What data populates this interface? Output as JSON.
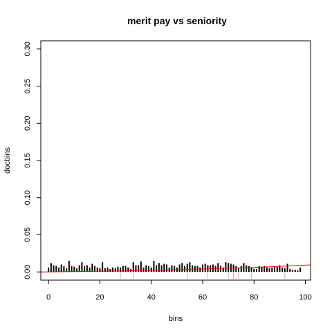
{
  "chart_data": {
    "type": "bar",
    "title": "merit pay vs seniority",
    "xlabel": "bins",
    "ylabel": "docbins",
    "xlim": [
      -3,
      102
    ],
    "ylim": [
      -0.011,
      0.311
    ],
    "x_ticks": [
      0,
      20,
      40,
      60,
      80,
      100
    ],
    "x_tick_labels": [
      "0",
      "20",
      "40",
      "60",
      "80",
      "100"
    ],
    "y_ticks": [
      0.0,
      0.05,
      0.1,
      0.15,
      0.2,
      0.25,
      0.3
    ],
    "y_tick_labels": [
      "0.00",
      "0.05",
      "0.10",
      "0.15",
      "0.20",
      "0.25",
      "0.30"
    ],
    "grid": false,
    "series": [
      {
        "style": "histogram-spikes",
        "color": "#000000",
        "x": [
          0,
          1,
          2,
          3,
          4,
          5,
          6,
          7,
          8,
          9,
          10,
          11,
          12,
          13,
          14,
          15,
          16,
          17,
          18,
          19,
          20,
          21,
          22,
          23,
          24,
          25,
          26,
          27,
          28,
          29,
          30,
          31,
          32,
          33,
          34,
          35,
          36,
          37,
          38,
          39,
          40,
          41,
          42,
          43,
          44,
          45,
          46,
          47,
          48,
          49,
          50,
          51,
          52,
          53,
          54,
          55,
          56,
          57,
          58,
          59,
          60,
          61,
          62,
          63,
          64,
          65,
          66,
          67,
          68,
          69,
          70,
          71,
          72,
          73,
          74,
          75,
          76,
          77,
          78,
          79,
          80,
          81,
          82,
          83,
          84,
          85,
          86,
          87,
          88,
          89,
          90,
          91,
          92,
          93,
          94,
          95,
          96,
          97,
          98
        ],
        "values": [
          0.006,
          0.012,
          0.009,
          0.008,
          0.006,
          0.01,
          0.008,
          0.005,
          0.015,
          0.008,
          0.007,
          0.005,
          0.009,
          0.013,
          0.008,
          0.009,
          0.006,
          0.011,
          0.008,
          0.006,
          0.005,
          0.013,
          0.005,
          0.006,
          0.004,
          0.006,
          0.005,
          0.007,
          0.006,
          0.008,
          0.008,
          0.006,
          0.004,
          0.013,
          0.009,
          0.009,
          0.014,
          0.006,
          0.009,
          0.008,
          0.006,
          0.015,
          0.009,
          0.012,
          0.009,
          0.011,
          0.01,
          0.006,
          0.009,
          0.008,
          0.006,
          0.01,
          0.012,
          0.008,
          0.011,
          0.013,
          0.009,
          0.008,
          0.008,
          0.006,
          0.01,
          0.011,
          0.009,
          0.009,
          0.01,
          0.008,
          0.012,
          0.008,
          0.006,
          0.013,
          0.012,
          0.011,
          0.01,
          0.008,
          0.006,
          0.008,
          0.012,
          0.009,
          0.008,
          0.006,
          0.004,
          0.004,
          0.008,
          0.007,
          0.008,
          0.006,
          0.005,
          0.006,
          0.007,
          0.007,
          0.009,
          0.006,
          0.005,
          0.011,
          0.004,
          0.003,
          0.003,
          0.002,
          0.006
        ]
      },
      {
        "style": "smooth-line",
        "color": "#ff0000",
        "x": [
          -3,
          10,
          20,
          30,
          40,
          50,
          60,
          70,
          80,
          90,
          102
        ],
        "values": [
          0.0,
          0.0005,
          0.001,
          0.0015,
          0.002,
          0.003,
          0.004,
          0.005,
          0.006,
          0.0075,
          0.0095
        ]
      },
      {
        "style": "rug",
        "color": "#ff9999",
        "x": [
          28,
          33,
          54,
          62,
          70,
          72,
          74,
          79,
          92
        ]
      }
    ]
  }
}
